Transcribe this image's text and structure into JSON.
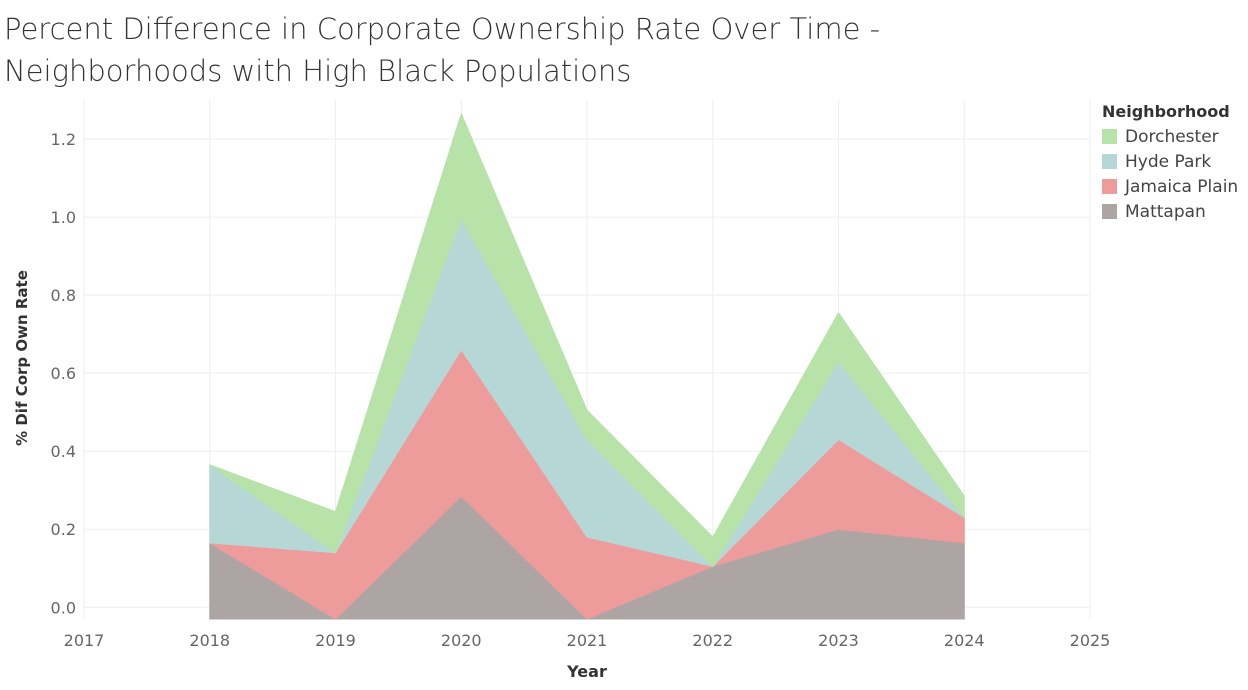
{
  "chart_data": {
    "type": "area",
    "stacked": true,
    "title": "Percent Difference in Corporate Ownership Rate Over Time - Neighborhoods with High Black Populations",
    "xlabel": "Year",
    "ylabel": "% Dif Corp Own Rate",
    "x_ticks": [
      "2017",
      "2018",
      "2019",
      "2020",
      "2021",
      "2022",
      "2023",
      "2024",
      "2025"
    ],
    "x_range": [
      2017,
      2025
    ],
    "y_ticks": [
      "0.0",
      "0.2",
      "0.4",
      "0.6",
      "0.8",
      "1.0",
      "1.2"
    ],
    "y_range": [
      -0.03,
      1.3
    ],
    "grid": true,
    "legend": {
      "title": "Neighborhood",
      "placement": "right"
    },
    "x": [
      2018,
      2019,
      2020,
      2021,
      2022,
      2023,
      2024
    ],
    "series": [
      {
        "name": "Mattapan",
        "color": "#ada5a3",
        "values": [
          0.165,
          -0.03,
          0.285,
          -0.03,
          0.105,
          0.2,
          0.165
        ]
      },
      {
        "name": "Jamaica Plain",
        "color": "#ee9b9b",
        "values": [
          0.0,
          0.17,
          0.375,
          0.21,
          0.0,
          0.23,
          0.065
        ]
      },
      {
        "name": "Hyde Park",
        "color": "#b5d8d6",
        "values": [
          0.2,
          0.0,
          0.335,
          0.25,
          0.0,
          0.2,
          0.0
        ]
      },
      {
        "name": "Dorchester",
        "color": "#b7e2a8",
        "values": [
          0.0,
          0.105,
          0.27,
          0.075,
          0.075,
          0.125,
          0.055
        ]
      }
    ]
  }
}
